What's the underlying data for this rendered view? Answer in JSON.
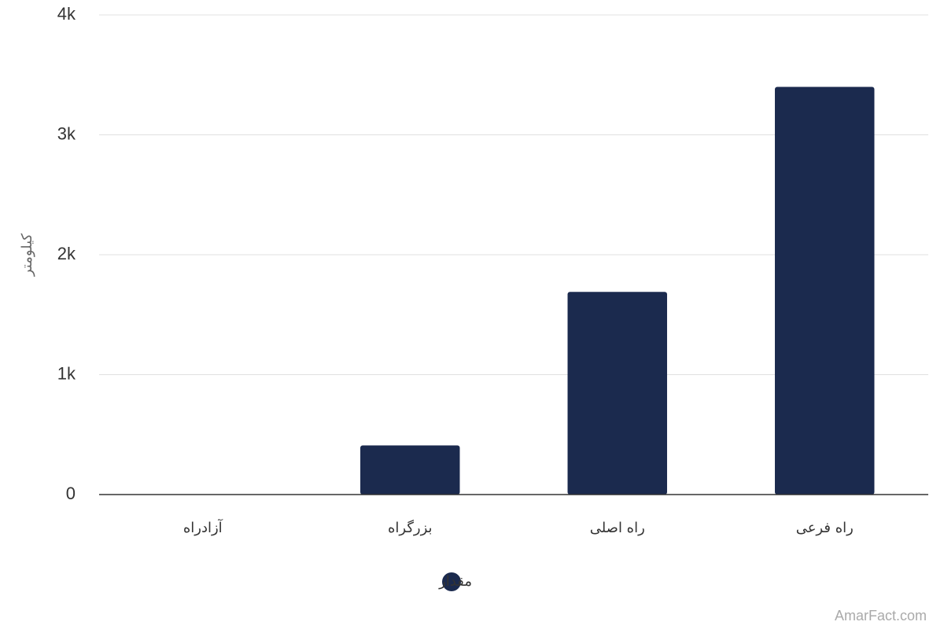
{
  "chart_data": {
    "type": "bar",
    "y_label": "کیلومتر",
    "categories": [
      "آزادراه",
      "بزرگراه",
      "راه اصلی",
      "راه فرعی"
    ],
    "series": [
      {
        "name": "مقدار",
        "color": "#1b2a4e",
        "values": [
          0,
          410,
          1690,
          3400
        ]
      }
    ],
    "ylim": [
      0,
      4000
    ],
    "yticks": [
      0,
      {
        "value": 1000,
        "label": "1k"
      },
      {
        "value": 2000,
        "label": "2k"
      },
      {
        "value": 3000,
        "label": "3k"
      },
      {
        "value": 4000,
        "label": "4k"
      }
    ],
    "grid": true,
    "legend": "bottom",
    "credit": "AmarFact.com"
  }
}
